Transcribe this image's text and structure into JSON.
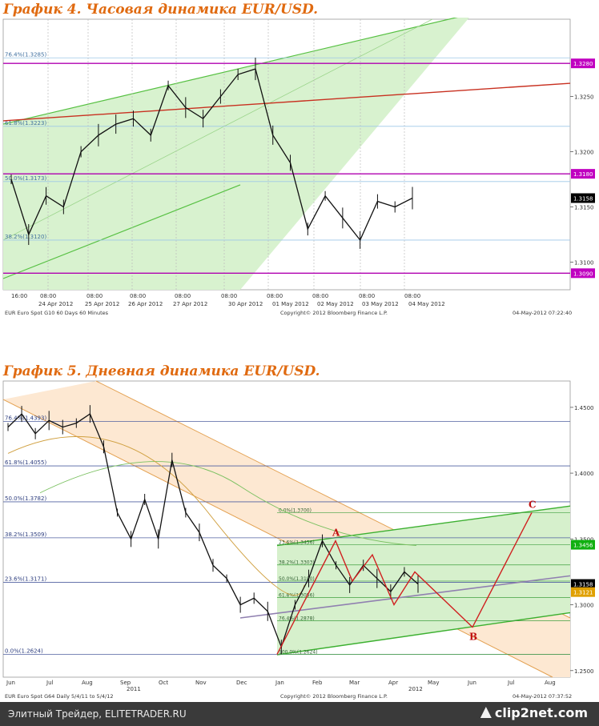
{
  "chart1": {
    "title": "График 4.   Часовая динамика EUR/USD.",
    "y_ticks": [
      "1.3250",
      "1.3200",
      "1.3150",
      "1.3100"
    ],
    "price_boxes": [
      {
        "label": "1.3280",
        "color": "#c000c0"
      },
      {
        "label": "1.3180",
        "color": "#c000c0"
      },
      {
        "label": "1.3158",
        "color": "#000000"
      },
      {
        "label": "1.3090",
        "color": "#c000c0"
      }
    ],
    "fib_labels": [
      "76.4%(1.3285)",
      "61.8%(1.3223)",
      "50.0%(1.3173)",
      "38.2%(1.3120)"
    ],
    "time_top": [
      "16:00",
      "08:00",
      "08:00",
      "08:00",
      "08:00",
      "08:00",
      "08:00",
      "08:00",
      "08:00",
      "08:00"
    ],
    "time_bottom": [
      "24 Apr 2012",
      "25 Apr 2012",
      "26 Apr 2012",
      "27 Apr 2012",
      "30 Apr 2012",
      "01 May 2012",
      "02 May 2012",
      "03 May 2012",
      "04 May 2012"
    ],
    "footer_left": "EUR  Euro Spot    G10   60 Days  60 Minutes",
    "copyright": "Copyright© 2012 Bloomberg Finance L.P.",
    "timestamp": "04-May-2012 07:22:40"
  },
  "chart2": {
    "title": "График 5.   Дневная динамика EUR/USD.",
    "y_ticks": [
      "1.4500",
      "1.4000",
      "1.3500",
      "1.3000",
      "1.2500"
    ],
    "price_boxes": [
      {
        "label": "1.3456",
        "color": "#10b010"
      },
      {
        "label": "1.3158",
        "color": "#000000"
      },
      {
        "label": "1.3121",
        "color": "#e0a000"
      }
    ],
    "fib_labels": [
      "76.4%(1.4393)",
      "61.8%(1.4055)",
      "50.0%(1.3782)",
      "38.2%(1.3509)",
      "23.6%(1.3171)",
      "0.0%(1.2624)"
    ],
    "small_fib_labels": [
      "0.0%(1.3700)",
      "23.6%(1.3456)",
      "38.2%(1.3303)",
      "50.0%(1.3180)",
      "61.8%(1.3056)",
      "76.4%(1.2878)",
      "100.0%(1.2624)"
    ],
    "pattern_points": [
      "A",
      "B",
      "C"
    ],
    "months": [
      "Jun",
      "Jul",
      "Aug",
      "Sep",
      "Oct",
      "Nov",
      "Dec",
      "Jan",
      "Feb",
      "Mar",
      "Apr",
      "May",
      "Jun",
      "Jul",
      "Aug"
    ],
    "years": [
      "2011",
      "2012"
    ],
    "footer_left": "EUR  Euro Spot    G64   Daily  5/4/11 to 5/4/12",
    "copyright": "Copyright© 2012 Bloomberg Finance L.P.",
    "timestamp": "04-May-2012 07:37:52"
  },
  "chart_data": [
    {
      "type": "line",
      "title": "График 4.   Часовая динамика EUR/USD.",
      "series": [
        {
          "values": [
            1.3175,
            1.3125,
            1.316,
            1.315,
            1.32,
            1.3215,
            1.3225,
            1.323,
            1.3215,
            1.326,
            1.324,
            1.323,
            1.325,
            1.327,
            1.3275,
            1.3215,
            1.319,
            1.313,
            1.316,
            1.314,
            1.312,
            1.3155,
            1.315,
            1.3158
          ]
        }
      ],
      "ylim": [
        1.3075,
        1.332
      ]
    },
    {
      "type": "line",
      "title": "График 5.   Дневная динамика EUR/USD.",
      "series": [
        {
          "values": [
            1.435,
            1.445,
            1.43,
            1.44,
            1.435,
            1.438,
            1.445,
            1.42,
            1.37,
            1.35,
            1.38,
            1.35,
            1.41,
            1.37,
            1.355,
            1.33,
            1.32,
            1.3,
            1.305,
            1.295,
            1.268,
            1.3,
            1.32,
            1.3486,
            1.33,
            1.315,
            1.33,
            1.32,
            1.31,
            1.325,
            1.3158
          ]
        }
      ],
      "ylim": [
        1.245,
        1.47
      ]
    }
  ]
}
